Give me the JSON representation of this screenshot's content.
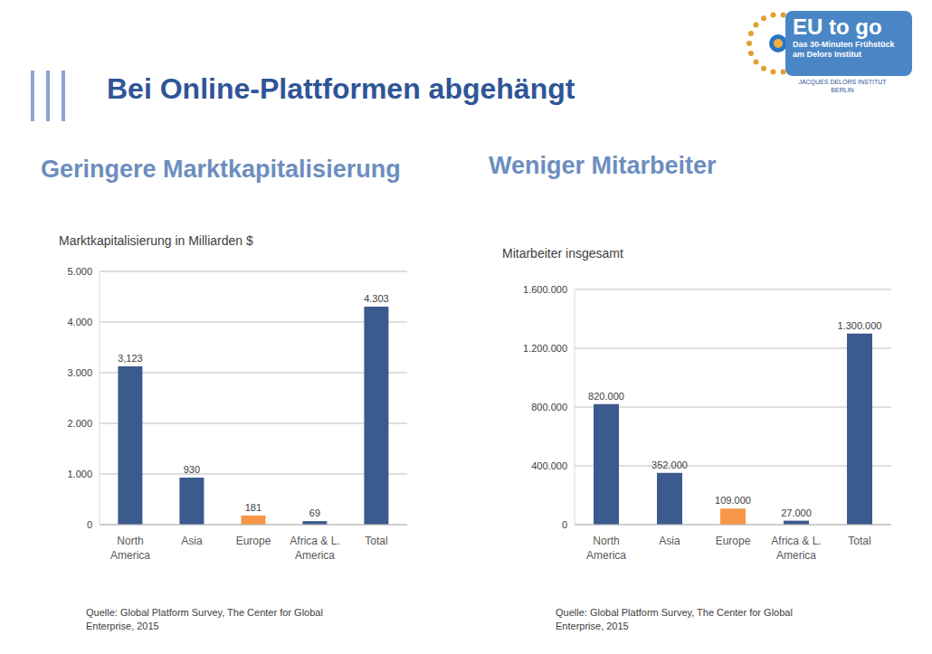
{
  "slide_title": "Bei Online-Plattformen abgehängt",
  "logo": {
    "title": "EU to go",
    "subtitle": "Das 30-Minuten Frühstück am Delors Institut",
    "institute": "JACQUES DELORS INSTITUT BERLIN"
  },
  "chart_data": [
    {
      "type": "bar",
      "title": "Geringere Marktkapitalisierung",
      "y_label": "Marktkapitalisierung in Milliarden $",
      "source": "Quelle: Global Platform Survey, The Center for Global Enterprise, 2015",
      "categories": [
        "North America",
        "Asia",
        "Europe",
        "Africa & L. America",
        "Total"
      ],
      "values": [
        3123,
        930,
        181,
        69,
        4303
      ],
      "value_labels": [
        "3,123",
        "930",
        "181",
        "69",
        "4.303"
      ],
      "colors": [
        "#3b5a8d",
        "#3b5a8d",
        "#f79646",
        "#3b5a8d",
        "#3b5a8d"
      ],
      "ylim": [
        0,
        5000
      ],
      "yticks": [
        0,
        {
          "value": 1000,
          "label": "1.000"
        },
        {
          "value": 2000,
          "label": "2.000"
        },
        {
          "value": 3000,
          "label": "3.000"
        },
        {
          "value": 4000,
          "label": "4.000"
        },
        {
          "value": 5000,
          "label": "5.000"
        }
      ],
      "grid": true,
      "data_labels": true
    },
    {
      "type": "bar",
      "title": "Weniger Mitarbeiter",
      "y_label": "Mitarbeiter insgesamt",
      "source": "Quelle: Global Platform Survey, The Center for Global Enterprise, 2015",
      "categories": [
        "North America",
        "Asia",
        "Europe",
        "Africa & L. America",
        "Total"
      ],
      "values": [
        820000,
        352000,
        109000,
        27000,
        1300000
      ],
      "value_labels": [
        "820.000",
        "352.000",
        "109.000",
        "27.000",
        "1.300.000"
      ],
      "colors": [
        "#3b5a8d",
        "#3b5a8d",
        "#f79646",
        "#3b5a8d",
        "#3b5a8d"
      ],
      "ylim": [
        0,
        1600000
      ],
      "yticks": [
        0,
        {
          "value": 400000,
          "label": "400.000"
        },
        {
          "value": 800000,
          "label": "800.000"
        },
        {
          "value": 1200000,
          "label": "1.200.000"
        },
        {
          "value": 1600000,
          "label": "1.600.000"
        }
      ],
      "grid": true,
      "data_labels": true
    }
  ]
}
